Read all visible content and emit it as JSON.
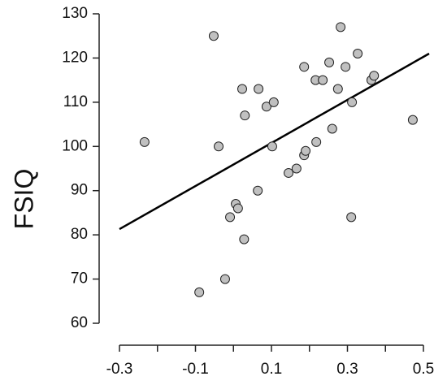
{
  "chart_data": {
    "type": "scatter",
    "y_label": "FSIQ",
    "x": [
      -0.234,
      -0.09,
      -0.052,
      -0.039,
      -0.022,
      -0.009,
      0.006,
      0.012,
      0.023,
      0.028,
      0.03,
      0.066,
      0.064,
      0.087,
      0.106,
      0.102,
      0.145,
      0.166,
      0.186,
      0.186,
      0.19,
      0.216,
      0.218,
      0.235,
      0.252,
      0.26,
      0.275,
      0.282,
      0.295,
      0.312,
      0.31,
      0.327,
      0.363,
      0.37,
      0.472
    ],
    "values": [
      101,
      67,
      125,
      100,
      70,
      84,
      87,
      86,
      113,
      79,
      107,
      113,
      90,
      109,
      110,
      100,
      94,
      95,
      118,
      98,
      99,
      115,
      101,
      115,
      119,
      104,
      113,
      127,
      118,
      110,
      84,
      121,
      115,
      116,
      106
    ],
    "color": "#c0c0c0",
    "fit": {
      "x": [
        -0.3,
        0.515
      ],
      "y": [
        81.3,
        121
      ]
    },
    "xlim": [
      -0.3,
      0.5
    ],
    "ylim": [
      60,
      130
    ],
    "xticks": [
      -0.3,
      -0.1,
      0.1,
      0.3,
      0.5
    ],
    "xticks_minor": [
      -0.2,
      0,
      0.2,
      0.4
    ],
    "yticks": [
      60,
      70,
      80,
      90,
      100,
      110,
      120,
      130
    ]
  }
}
